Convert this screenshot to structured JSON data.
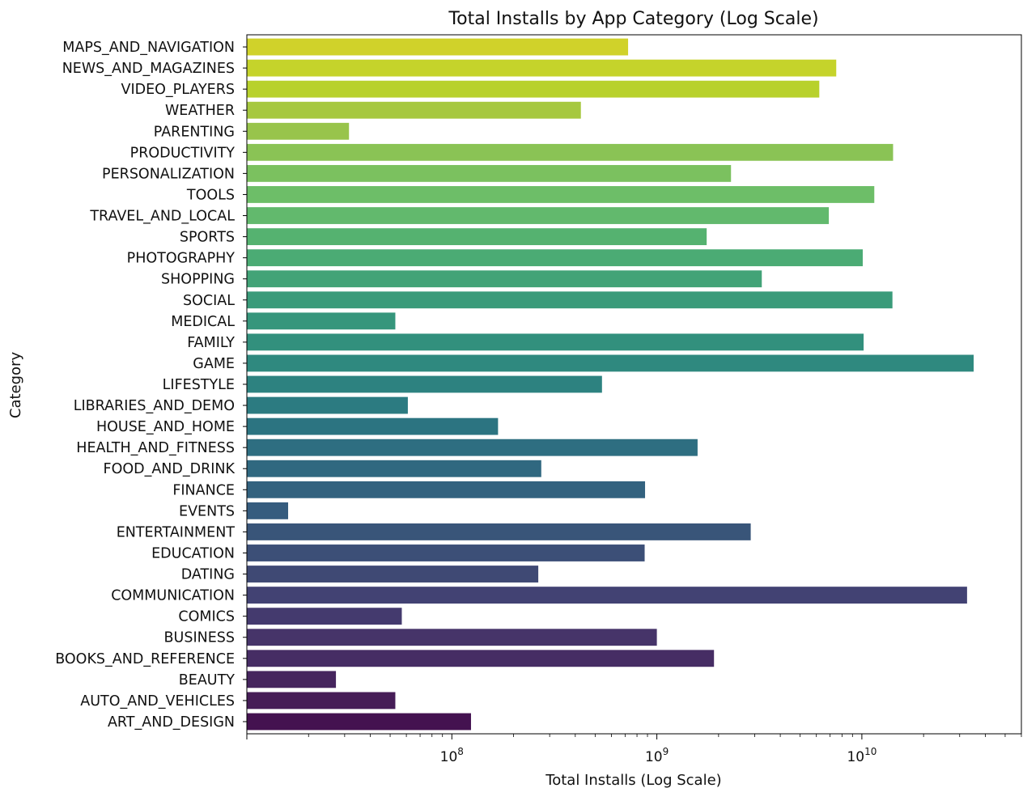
{
  "chart_data": {
    "type": "bar",
    "orientation": "horizontal",
    "title": "Total Installs by App Category (Log Scale)",
    "xlabel": "Total Installs (Log Scale)",
    "ylabel": "Category",
    "x_scale": "log",
    "xlim": [
      10000000,
      60000000000
    ],
    "x_ticks": [
      {
        "value": 100000000,
        "base": "10",
        "exp": "8"
      },
      {
        "value": 1000000000,
        "base": "10",
        "exp": "9"
      },
      {
        "value": 10000000000,
        "base": "10",
        "exp": "10"
      }
    ],
    "grid": false,
    "palette": "viridis",
    "categories": [
      "MAPS_AND_NAVIGATION",
      "NEWS_AND_MAGAZINES",
      "VIDEO_PLAYERS",
      "WEATHER",
      "PARENTING",
      "PRODUCTIVITY",
      "PERSONALIZATION",
      "TOOLS",
      "TRAVEL_AND_LOCAL",
      "SPORTS",
      "PHOTOGRAPHY",
      "SHOPPING",
      "SOCIAL",
      "MEDICAL",
      "FAMILY",
      "GAME",
      "LIFESTYLE",
      "LIBRARIES_AND_DEMO",
      "HOUSE_AND_HOME",
      "HEALTH_AND_FITNESS",
      "FOOD_AND_DRINK",
      "FINANCE",
      "EVENTS",
      "ENTERTAINMENT",
      "EDUCATION",
      "DATING",
      "COMMUNICATION",
      "COMICS",
      "BUSINESS",
      "BOOKS_AND_REFERENCE",
      "BEAUTY",
      "AUTO_AND_VEHICLES",
      "ART_AND_DESIGN"
    ],
    "values": [
      724000000,
      7500000000,
      6200000000,
      426000000,
      31500000,
      14200000000,
      2300000000,
      11500000000,
      6900000000,
      1750000000,
      10100000000,
      3250000000,
      14100000000,
      53000000,
      10200000000,
      35100000000,
      540000000,
      61000000,
      168000000,
      1580000000,
      273000000,
      876000000,
      15900000,
      2870000000,
      872000000,
      264000000,
      32600000000,
      57000000,
      1000000000,
      1900000000,
      27200000,
      53000000,
      124000000
    ],
    "colors": [
      "#d0d22a",
      "#c5d32b",
      "#b8d12c",
      "#a6c83f",
      "#98c44b",
      "#8ac355",
      "#7bc15f",
      "#6dbe68",
      "#62b96d",
      "#55b270",
      "#4bab74",
      "#42a377",
      "#3a9b7a",
      "#36967c",
      "#32907d",
      "#2f897f",
      "#2d8280",
      "#2c7b81",
      "#2c7481",
      "#2e6e81",
      "#306880",
      "#33627f",
      "#365c7e",
      "#395579",
      "#3c4f77",
      "#3f4974",
      "#424273",
      "#443a6e",
      "#463469",
      "#462d64",
      "#46255e",
      "#461d57",
      "#441250"
    ]
  }
}
